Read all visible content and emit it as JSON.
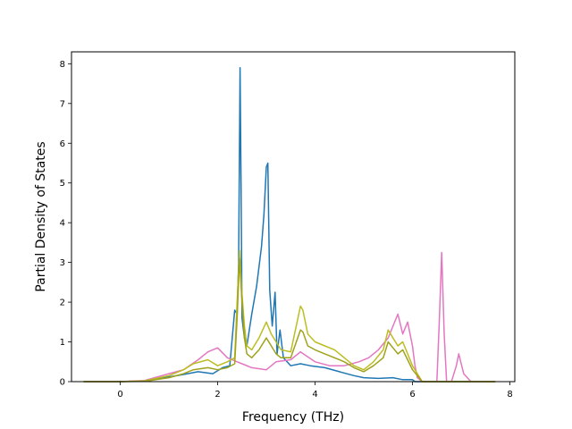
{
  "chart_data": {
    "type": "line",
    "xlabel": "Frequency (THz)",
    "ylabel": "Partial Density of States",
    "xlim": [
      -1.0,
      8.1
    ],
    "ylim": [
      0,
      8.3
    ],
    "xticks": [
      0,
      2,
      4,
      6,
      8
    ],
    "yticks": [
      0,
      1,
      2,
      3,
      4,
      5,
      6,
      7,
      8
    ],
    "grid": false,
    "legend": "none",
    "series": [
      {
        "color": "#1f77b4",
        "x": [
          -0.75,
          0.0,
          0.5,
          1.0,
          1.3,
          1.6,
          1.9,
          2.1,
          2.25,
          2.35,
          2.4,
          2.43,
          2.46,
          2.48,
          2.5,
          2.55,
          2.6,
          2.7,
          2.8,
          2.9,
          2.95,
          3.0,
          3.03,
          3.07,
          3.12,
          3.18,
          3.22,
          3.28,
          3.35,
          3.5,
          3.7,
          3.9,
          4.2,
          4.5,
          4.8,
          5.0,
          5.3,
          5.6,
          5.8,
          6.0,
          6.05,
          6.2,
          6.6,
          7.0,
          7.5,
          7.7
        ],
        "values": [
          0,
          0,
          0.02,
          0.12,
          0.18,
          0.25,
          0.2,
          0.35,
          0.4,
          1.8,
          1.7,
          3.0,
          7.9,
          5.0,
          1.6,
          1.1,
          0.9,
          1.7,
          2.4,
          3.4,
          4.2,
          5.4,
          5.5,
          2.3,
          1.4,
          2.25,
          0.7,
          1.3,
          0.6,
          0.4,
          0.45,
          0.4,
          0.35,
          0.25,
          0.15,
          0.1,
          0.08,
          0.1,
          0.05,
          0.05,
          0,
          0,
          0,
          0,
          0,
          0
        ]
      },
      {
        "color": "#e377c2",
        "x": [
          -0.75,
          0.0,
          0.5,
          1.0,
          1.3,
          1.6,
          1.8,
          2.0,
          2.2,
          2.4,
          2.5,
          2.7,
          3.0,
          3.2,
          3.5,
          3.7,
          4.0,
          4.3,
          4.6,
          4.9,
          5.1,
          5.3,
          5.5,
          5.7,
          5.8,
          5.9,
          6.0,
          6.05,
          6.1,
          6.2,
          6.5,
          6.55,
          6.6,
          6.65,
          6.7,
          6.8,
          6.9,
          6.95,
          7.05,
          7.2,
          7.5,
          7.7
        ],
        "values": [
          0,
          0,
          0.03,
          0.2,
          0.3,
          0.55,
          0.75,
          0.85,
          0.6,
          0.5,
          0.45,
          0.35,
          0.3,
          0.5,
          0.55,
          0.75,
          0.5,
          0.4,
          0.4,
          0.5,
          0.6,
          0.8,
          1.1,
          1.7,
          1.2,
          1.5,
          0.9,
          0.4,
          0.1,
          0,
          0,
          1.5,
          3.25,
          1.2,
          0,
          0,
          0.4,
          0.7,
          0.2,
          0,
          0,
          0
        ]
      },
      {
        "color": "#bcbd22",
        "x": [
          -0.75,
          0.0,
          0.5,
          1.0,
          1.3,
          1.5,
          1.8,
          2.0,
          2.2,
          2.35,
          2.4,
          2.45,
          2.5,
          2.55,
          2.6,
          2.7,
          2.85,
          3.0,
          3.1,
          3.2,
          3.3,
          3.5,
          3.7,
          3.75,
          3.85,
          4.0,
          4.2,
          4.4,
          4.6,
          4.8,
          5.0,
          5.2,
          5.4,
          5.5,
          5.6,
          5.7,
          5.8,
          5.9,
          6.0,
          6.1,
          6.2,
          6.5,
          7.0,
          7.7
        ],
        "values": [
          0,
          0,
          0.02,
          0.15,
          0.3,
          0.45,
          0.55,
          0.4,
          0.5,
          0.6,
          2.0,
          3.3,
          2.2,
          1.4,
          0.9,
          0.8,
          1.1,
          1.5,
          1.2,
          1.0,
          0.8,
          0.75,
          1.9,
          1.8,
          1.2,
          1.0,
          0.9,
          0.8,
          0.6,
          0.4,
          0.3,
          0.5,
          0.8,
          1.3,
          1.1,
          0.9,
          1.0,
          0.7,
          0.4,
          0.2,
          0,
          0,
          0,
          0
        ]
      },
      {
        "color": "#9fa21a",
        "x": [
          -0.75,
          0.0,
          0.5,
          1.0,
          1.3,
          1.5,
          1.8,
          2.0,
          2.2,
          2.35,
          2.4,
          2.45,
          2.5,
          2.55,
          2.6,
          2.7,
          2.85,
          3.0,
          3.1,
          3.2,
          3.3,
          3.5,
          3.7,
          3.75,
          3.85,
          4.0,
          4.2,
          4.4,
          4.6,
          4.8,
          5.0,
          5.2,
          5.4,
          5.5,
          5.6,
          5.7,
          5.8,
          5.9,
          6.0,
          6.1,
          6.2,
          6.5,
          7.0,
          7.7
        ],
        "values": [
          0,
          0,
          0.01,
          0.1,
          0.2,
          0.3,
          0.35,
          0.3,
          0.35,
          0.45,
          1.6,
          3.1,
          2.0,
          1.1,
          0.7,
          0.6,
          0.8,
          1.1,
          0.9,
          0.7,
          0.6,
          0.6,
          1.3,
          1.25,
          0.9,
          0.8,
          0.7,
          0.6,
          0.5,
          0.35,
          0.25,
          0.4,
          0.6,
          1.0,
          0.85,
          0.7,
          0.8,
          0.55,
          0.3,
          0.15,
          0,
          0,
          0,
          0
        ]
      }
    ]
  }
}
